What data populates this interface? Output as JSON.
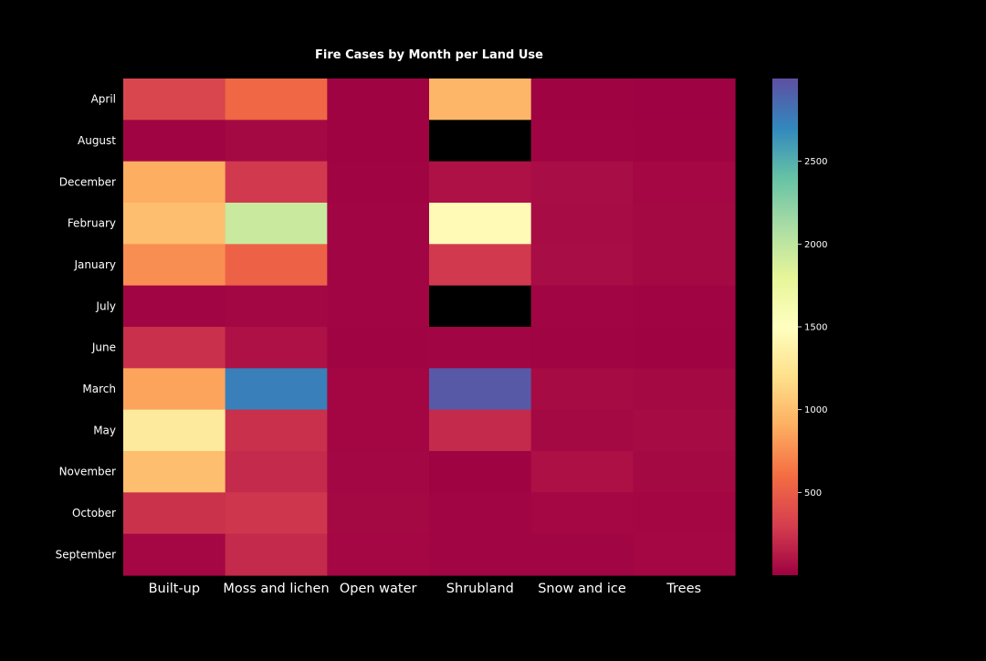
{
  "chart_data": {
    "type": "heatmap",
    "title": "Fire Cases by Month per Land Use",
    "x_categories": [
      "Built-up",
      "Moss and lichen",
      "Open water",
      "Shrubland",
      "Snow and ice",
      "Trees"
    ],
    "y_categories": [
      "April",
      "August",
      "December",
      "February",
      "January",
      "July",
      "June",
      "March",
      "May",
      "November",
      "October",
      "September"
    ],
    "values": [
      [
        350,
        560,
        10,
        950,
        10,
        5
      ],
      [
        15,
        40,
        10,
        null,
        15,
        10
      ],
      [
        900,
        280,
        15,
        80,
        60,
        30
      ],
      [
        1000,
        1950,
        20,
        1450,
        55,
        40
      ],
      [
        750,
        530,
        20,
        280,
        60,
        40
      ],
      [
        20,
        35,
        20,
        null,
        20,
        15
      ],
      [
        230,
        80,
        15,
        20,
        15,
        10
      ],
      [
        850,
        2750,
        25,
        2950,
        50,
        40
      ],
      [
        1300,
        230,
        25,
        200,
        40,
        50
      ],
      [
        1000,
        200,
        35,
        10,
        75,
        40
      ],
      [
        240,
        260,
        40,
        20,
        30,
        25
      ],
      [
        30,
        200,
        30,
        20,
        20,
        30
      ]
    ],
    "missing_color": "#000000",
    "colormap": "Spectral",
    "colorbar": {
      "range": [
        0,
        3000
      ],
      "ticks": [
        500,
        1000,
        1500,
        2000,
        2500
      ]
    },
    "background": "#000000"
  }
}
